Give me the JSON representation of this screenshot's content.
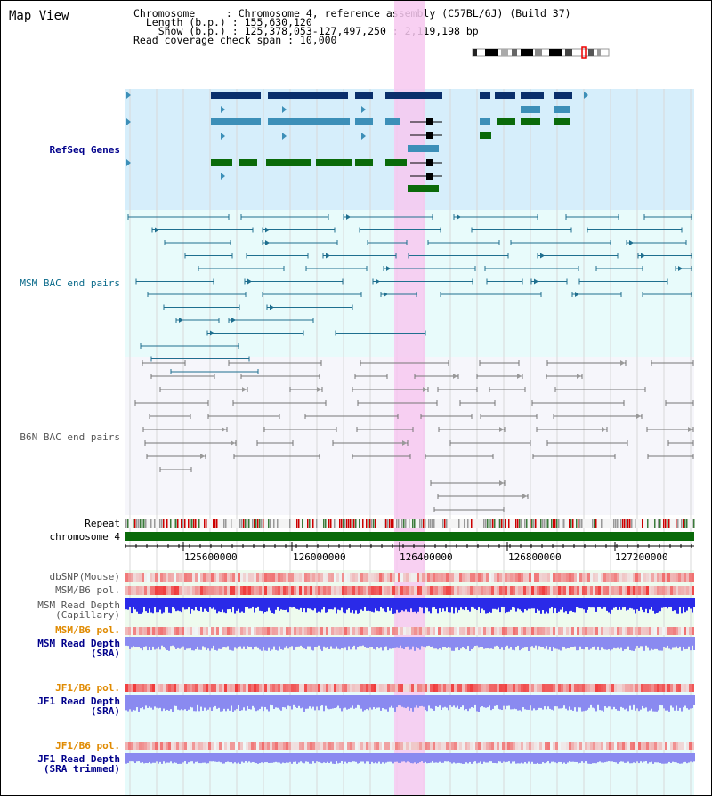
{
  "title": "Map View",
  "header": {
    "chromosome": "Chromosome     : Chromosome 4, reference assembly (C57BL/6J) (Build 37)",
    "length": "  Length (b.p.) : 155,630,120",
    "show": "    Show (b.p.) : 125,378,053-127,497,250 : 2,119,198 bp",
    "coverage": "Read coverage check span : 10,000"
  },
  "tracks": {
    "refseq": "RefSeq Genes",
    "msm_bac": "MSM BAC end pairs",
    "b6n_bac": "B6N BAC end pairs",
    "repeat": "Repeat",
    "chromosome": "chromosome 4",
    "dbsnp": "dbSNP(Mouse)",
    "msm_b6_pol": "MSM/B6 pol.",
    "msm_depth_cap": "MSM Read Depth\n(Capillary)",
    "msm_b6_pol2": "MSM/B6 pol.",
    "msm_depth_sra": "MSM Read Depth\n(SRA)",
    "jf1_b6_pol": "JF1/B6 pol.",
    "jf1_depth_sra": "JF1 Read Depth\n(SRA)",
    "jf1_b6_pol2": "JF1/B6 pol.",
    "jf1_depth_trim": "JF1 Read Depth\n(SRA trimmed)"
  },
  "axis_ticks": [
    "125600000",
    "126000000",
    "126400000",
    "126800000",
    "127200000"
  ],
  "colors": {
    "refseq_bg": "#d6eefb",
    "bac_bg": "#e8fbfb",
    "b6n_bg": "#f6f6fb",
    "highlight": "#f7c8f0",
    "gene_dark": "#0a2f6b",
    "gene_mid": "#3c8fb8",
    "gene_green": "#0a6a0a",
    "msm_line": "#1f6f8f",
    "b6n_line": "#777777",
    "label_navy": "#00008b",
    "label_teal": "#0a6a8a",
    "label_orange": "#e08a00",
    "label_gray": "#555555",
    "depth_blue": "#2a2ae8",
    "depth_lav": "#8a8af0"
  }
}
